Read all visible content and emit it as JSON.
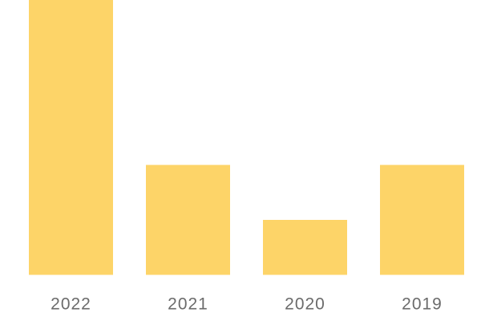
{
  "chart_data": {
    "type": "bar",
    "categories": [
      "2022",
      "2021",
      "2020",
      "2019"
    ],
    "values": [
      5,
      2,
      1,
      2
    ],
    "color": "#fdd468",
    "ylim": [
      0,
      5
    ]
  }
}
